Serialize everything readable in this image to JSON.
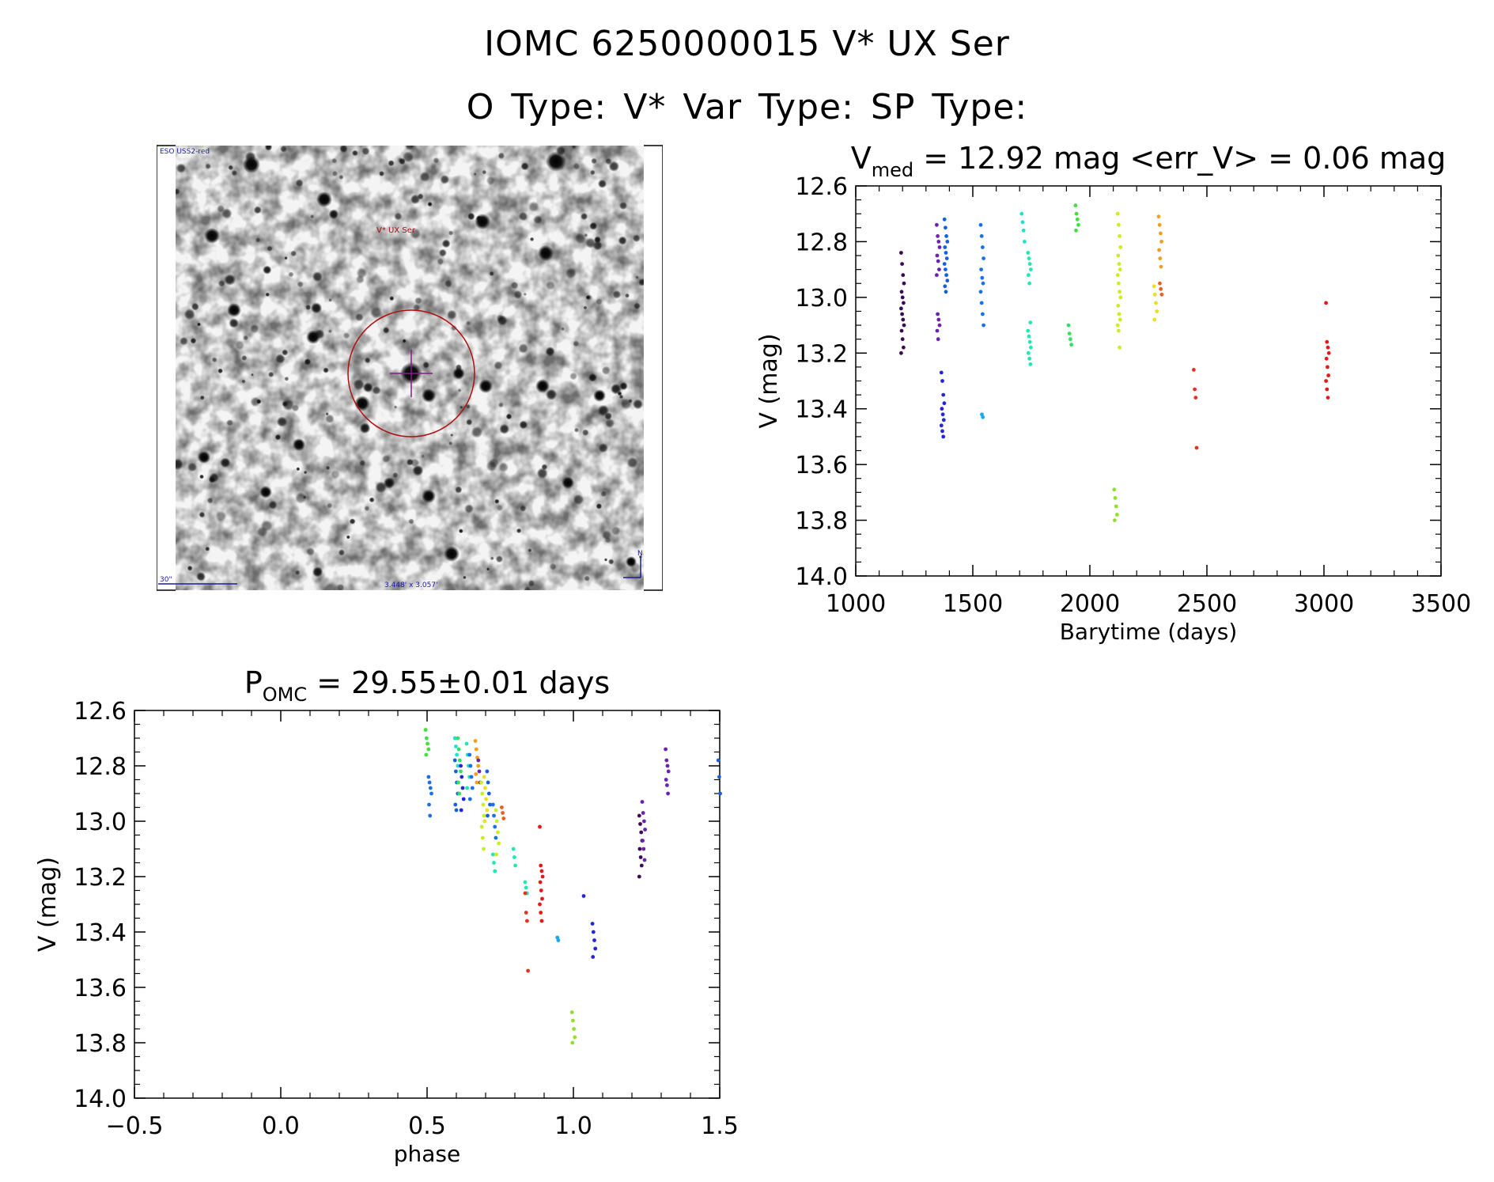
{
  "header": {
    "line1": "IOMC 6250000015   V* UX Ser",
    "line2": "O Type: V*  Var Type:   SP Type:"
  },
  "finder": {
    "survey_label": "ESO USS2-red",
    "target_label": "V* UX Ser",
    "scale_label": "30\"",
    "fov_label": "3.448' x 3.057'",
    "north_label": "N"
  },
  "chart_data": [
    {
      "type": "scatter",
      "id": "light-curve",
      "title_main": "V",
      "title_sub": "med",
      "title_rest": " = 12.92 mag <err_V> = 0.06 mag",
      "xlabel": "Barytime (days)",
      "ylabel": "V (mag)",
      "xlim": [
        1000,
        3500
      ],
      "ylim": [
        12.6,
        14.0
      ],
      "y_inverted": true,
      "xticks": [
        1000,
        1500,
        2000,
        2500,
        3000,
        3500
      ],
      "yticks": [
        "12.6",
        "12.8",
        "13.0",
        "13.2",
        "13.4",
        "13.6",
        "13.8",
        "14.0"
      ],
      "groups": [
        {
          "t": 1200,
          "color": "#3a0a52",
          "v": [
            12.84,
            12.88,
            12.92,
            12.95,
            12.98,
            13.0,
            13.02,
            13.04,
            13.06,
            13.08,
            13.1,
            13.12,
            13.15,
            13.18,
            13.2
          ]
        },
        {
          "t": 1352,
          "color": "#6a22b0",
          "v": [
            12.74,
            12.78,
            12.8,
            12.82,
            12.85,
            12.87,
            12.9,
            12.92,
            13.06,
            13.08,
            13.1,
            13.12,
            13.15
          ]
        },
        {
          "t": 1372,
          "color": "#2424d8",
          "v": [
            13.27,
            13.3,
            13.35,
            13.38,
            13.4,
            13.42,
            13.44,
            13.46,
            13.48,
            13.5
          ]
        },
        {
          "t": 1385,
          "color": "#1560e0",
          "v": [
            12.72,
            12.75,
            12.78,
            12.8,
            12.82,
            12.84,
            12.86,
            12.88,
            12.9,
            12.92,
            12.94,
            12.96,
            12.98
          ]
        },
        {
          "t": 1540,
          "color": "#1a70e8",
          "v": [
            12.74,
            12.78,
            12.82,
            12.86,
            12.9,
            12.93,
            12.95,
            12.98,
            13.02,
            13.06,
            13.1
          ]
        },
        {
          "t": 1545,
          "color": "#18a8f0",
          "v": [
            13.42,
            13.43
          ]
        },
        {
          "t": 1715,
          "color": "#20e0d0",
          "v": [
            12.7,
            12.73,
            12.76,
            12.8
          ]
        },
        {
          "t": 1742,
          "color": "#20e8b0",
          "v": [
            12.84,
            12.86,
            12.88,
            12.9,
            12.92,
            12.95,
            13.09,
            13.12,
            13.14,
            13.16,
            13.18,
            13.2,
            13.22,
            13.24
          ]
        },
        {
          "t": 1915,
          "color": "#30e060",
          "v": [
            13.1,
            13.13,
            13.15,
            13.17
          ]
        },
        {
          "t": 1945,
          "color": "#40e040",
          "v": [
            12.67,
            12.7,
            12.72,
            12.74,
            12.76
          ]
        },
        {
          "t": 2110,
          "color": "#90e030",
          "v": [
            13.69,
            13.72,
            13.75,
            13.78,
            13.8
          ]
        },
        {
          "t": 2125,
          "color": "#c8f020",
          "v": [
            12.7,
            12.74,
            12.78,
            12.82,
            12.85,
            12.88,
            12.9,
            12.92,
            12.95,
            12.98,
            13.0,
            13.03,
            13.06,
            13.08,
            13.1,
            13.12,
            13.18
          ]
        },
        {
          "t": 2280,
          "color": "#e8e020",
          "v": [
            12.96,
            12.99,
            13.02,
            13.05,
            13.08
          ]
        },
        {
          "t": 2300,
          "color": "#f0a020",
          "v": [
            12.71,
            12.74,
            12.77,
            12.8,
            12.83,
            12.86,
            12.89
          ]
        },
        {
          "t": 2305,
          "color": "#e86020",
          "v": [
            12.95,
            12.97,
            12.99
          ]
        },
        {
          "t": 2450,
          "color": "#e83020",
          "v": [
            13.26,
            13.33,
            13.36,
            13.54
          ]
        },
        {
          "t": 3015,
          "color": "#e81818",
          "v": [
            13.02,
            13.16,
            13.18,
            13.2,
            13.22,
            13.25,
            13.28,
            13.3,
            13.33,
            13.36
          ]
        }
      ]
    },
    {
      "type": "scatter",
      "id": "phase-curve",
      "title_main": "P",
      "title_sub": "OMC",
      "title_rest": " = 29.55±0.01 days",
      "xlabel": "phase",
      "ylabel": "V (mag)",
      "xlim": [
        -0.5,
        1.5
      ],
      "ylim": [
        12.6,
        14.0
      ],
      "y_inverted": true,
      "xticks": [
        "−0.5",
        "0.0",
        "0.5",
        "1.0",
        "1.5"
      ],
      "yticks": [
        "12.6",
        "12.8",
        "13.0",
        "13.2",
        "13.4",
        "13.6",
        "13.8",
        "14.0"
      ],
      "groups": [
        {
          "p": 0.5,
          "color": "#40e040",
          "v": [
            12.67,
            12.7,
            12.72,
            12.74,
            12.76
          ]
        },
        {
          "p": 0.51,
          "color": "#1a70e8",
          "v": [
            12.84,
            12.86,
            12.88,
            12.9,
            12.94,
            12.98
          ]
        },
        {
          "p": 0.6,
          "color": "#20e0d0",
          "v": [
            12.7,
            12.73,
            12.76,
            12.8
          ]
        },
        {
          "p": 0.6,
          "color": "#1560e0",
          "v": [
            12.78,
            12.82,
            12.86,
            12.9,
            12.94,
            12.96
          ]
        },
        {
          "p": 0.61,
          "color": "#30e060",
          "v": [
            12.7,
            12.74,
            12.78,
            12.82,
            12.86,
            12.9
          ]
        },
        {
          "p": 0.62,
          "color": "#2424d8",
          "v": [
            12.8,
            12.84,
            12.88,
            12.92,
            12.96
          ]
        },
        {
          "p": 0.64,
          "color": "#20e8b0",
          "v": [
            12.72,
            12.76,
            12.8,
            12.84,
            12.88
          ]
        },
        {
          "p": 0.65,
          "color": "#1a70e8",
          "v": [
            12.76,
            12.8,
            12.84,
            12.88,
            12.92
          ]
        },
        {
          "p": 0.67,
          "color": "#f0a020",
          "v": [
            12.71,
            12.74,
            12.77,
            12.8,
            12.83,
            12.86
          ]
        },
        {
          "p": 0.68,
          "color": "#6a22b0",
          "v": [
            12.78,
            12.82,
            12.86
          ]
        },
        {
          "p": 0.69,
          "color": "#c8f020",
          "v": [
            12.86,
            12.9,
            12.94,
            12.98,
            13.02,
            13.06,
            13.1
          ]
        },
        {
          "p": 0.7,
          "color": "#e8e020",
          "v": [
            12.84,
            12.88,
            12.92,
            12.96,
            13.0
          ]
        },
        {
          "p": 0.71,
          "color": "#1560e0",
          "v": [
            12.82,
            12.86,
            12.9,
            12.94,
            12.98
          ]
        },
        {
          "p": 0.73,
          "color": "#1a70e8",
          "v": [
            12.94,
            12.98,
            13.02,
            13.06
          ]
        },
        {
          "p": 0.73,
          "color": "#20e8b0",
          "v": [
            13.12,
            13.15,
            13.18
          ]
        },
        {
          "p": 0.74,
          "color": "#c8f020",
          "v": [
            12.96,
            13.0,
            13.04,
            13.08,
            13.12
          ]
        },
        {
          "p": 0.76,
          "color": "#e86020",
          "v": [
            12.95,
            12.97,
            12.99
          ]
        },
        {
          "p": 0.8,
          "color": "#20e8b0",
          "v": [
            13.1,
            13.13,
            13.16
          ]
        },
        {
          "p": 0.84,
          "color": "#20e8b0",
          "v": [
            13.22,
            13.24,
            13.26
          ]
        },
        {
          "p": 0.84,
          "color": "#e83020",
          "v": [
            13.26,
            13.33,
            13.36,
            13.54
          ]
        },
        {
          "p": 0.89,
          "color": "#e81818",
          "v": [
            13.02,
            13.16,
            13.18,
            13.2,
            13.22,
            13.25,
            13.28,
            13.3,
            13.33,
            13.36
          ]
        },
        {
          "p": 0.95,
          "color": "#18a8f0",
          "v": [
            13.42,
            13.43
          ]
        },
        {
          "p": 1.0,
          "color": "#90e030",
          "v": [
            13.69,
            13.72,
            13.75,
            13.78,
            13.8
          ]
        },
        {
          "p": 1.04,
          "color": "#2424d8",
          "v": [
            13.27
          ]
        },
        {
          "p": 1.07,
          "color": "#2424d8",
          "v": [
            13.37,
            13.4,
            13.43,
            13.46,
            13.49
          ]
        },
        {
          "p": 1.23,
          "color": "#3a0a52",
          "v": [
            12.98,
            13.01,
            13.04,
            13.07,
            13.1,
            13.13,
            13.16,
            13.2
          ]
        },
        {
          "p": 1.24,
          "color": "#6a22b0",
          "v": [
            12.93,
            12.97,
            13.0,
            13.03,
            13.07,
            13.1,
            13.14
          ]
        },
        {
          "p": 1.32,
          "color": "#6a22b0",
          "v": [
            12.74,
            12.78,
            12.8,
            12.82,
            12.85,
            12.87,
            12.9
          ]
        },
        {
          "p": 1.5,
          "color": "#1560e0",
          "v": [
            12.78,
            12.84,
            12.9
          ]
        }
      ]
    }
  ]
}
